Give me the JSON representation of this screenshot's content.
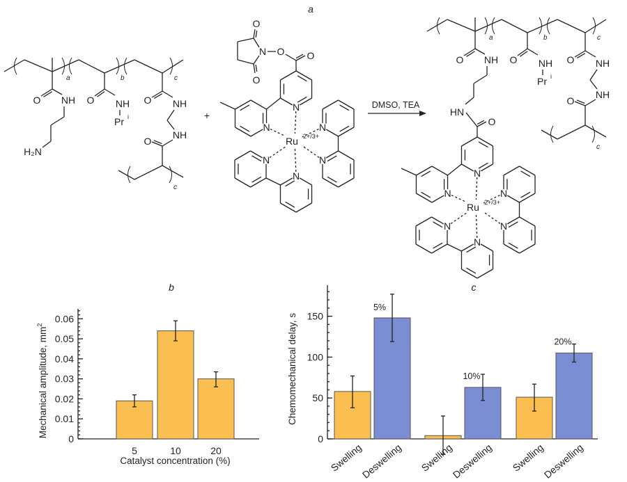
{
  "panel_labels": {
    "a": "a",
    "b": "b",
    "c": "c"
  },
  "scheme": {
    "reaction_conditions": "DMSO, TEA",
    "plus": "+",
    "atoms": {
      "O": "O",
      "NH": "NH",
      "N": "N",
      "HN": "HN",
      "H2N": "H₂N",
      "Pr": "Pr",
      "Pr_sup": "i",
      "Ru": "Ru",
      "Ru_charge": "2+/3+"
    },
    "subscripts": {
      "a": "a",
      "b": "b",
      "c": "c"
    }
  },
  "chart_data": [
    {
      "type": "bar",
      "panel": "b",
      "categories": [
        "5",
        "10",
        "20"
      ],
      "values": [
        0.019,
        0.054,
        0.03
      ],
      "error_low": [
        0.016,
        0.049,
        0.026
      ],
      "error_high": [
        0.022,
        0.059,
        0.0335
      ],
      "xlabel": "Catalyst concentration (%)",
      "ylabel": "Mechanical amplitude, mm",
      "ylabel_sup": "2",
      "ylim": [
        0,
        0.065
      ],
      "yticks": [
        "0",
        "0.01",
        "0.02",
        "0.03",
        "0.04",
        "0.05",
        "0.06"
      ],
      "bar_color": "#FBBE51",
      "grid": false
    },
    {
      "type": "bar",
      "panel": "c",
      "categories": [
        "Swelling",
        "Deswelling",
        "Swelling",
        "Deswelling",
        "Swelling",
        "Deswelling"
      ],
      "groups": [
        "5%",
        "10%",
        "20%"
      ],
      "values": [
        58,
        148,
        4,
        63,
        51,
        105
      ],
      "error_low": [
        38,
        119,
        -19,
        47,
        34,
        94
      ],
      "error_high": [
        77,
        177,
        28,
        79,
        67,
        116
      ],
      "xlabel": "",
      "ylabel": "Chemomechanical delay, s",
      "ylim": [
        0,
        188
      ],
      "yticks": [
        "0",
        "50",
        "100",
        "150"
      ],
      "colors": {
        "Swelling": "#FBBE51",
        "Deswelling": "#7B8ED4"
      },
      "grid": false
    }
  ]
}
